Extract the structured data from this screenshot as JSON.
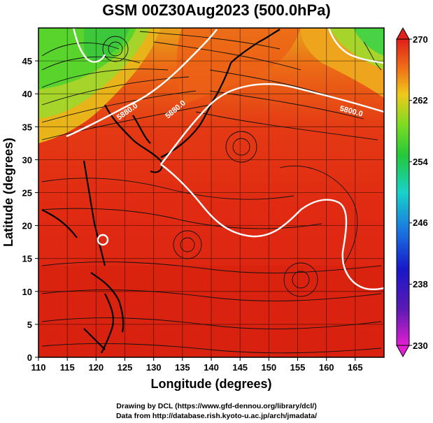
{
  "title": "GSM 00Z30Aug2023 (500.0hPa)",
  "x_axis": {
    "label": "Longitude (degrees)",
    "ticks": [
      "110",
      "115",
      "120",
      "125",
      "130",
      "135",
      "140",
      "145",
      "150",
      "155",
      "160",
      "165"
    ]
  },
  "y_axis": {
    "label": "Latitude (degrees)",
    "ticks": [
      "0",
      "5",
      "10",
      "15",
      "20",
      "25",
      "30",
      "35",
      "40",
      "45"
    ]
  },
  "colorbar": {
    "ticks": [
      "230",
      "238",
      "246",
      "254",
      "262",
      "270"
    ]
  },
  "contour_labels": [
    "5880.0",
    "5800.0",
    "5880.0"
  ],
  "footer": {
    "line1": "Drawing by DCL (https://www.gfd-dennou.org/library/dcl/)",
    "line2": "Data from http://database.rish.kyoto-u.ac.jp/arch/jmadata/"
  },
  "colors": {
    "warm": "#e02a12",
    "hot": "#d41c0e",
    "orange": "#f07418",
    "yellow": "#e8c21c",
    "green": "#4ad62c",
    "contour": "#ffffff"
  },
  "map_data": {
    "lon_range": [
      110,
      170
    ],
    "lat_range": [
      0,
      50
    ],
    "variable": "temperature (K) with wind streamlines and geopotential height contours"
  }
}
